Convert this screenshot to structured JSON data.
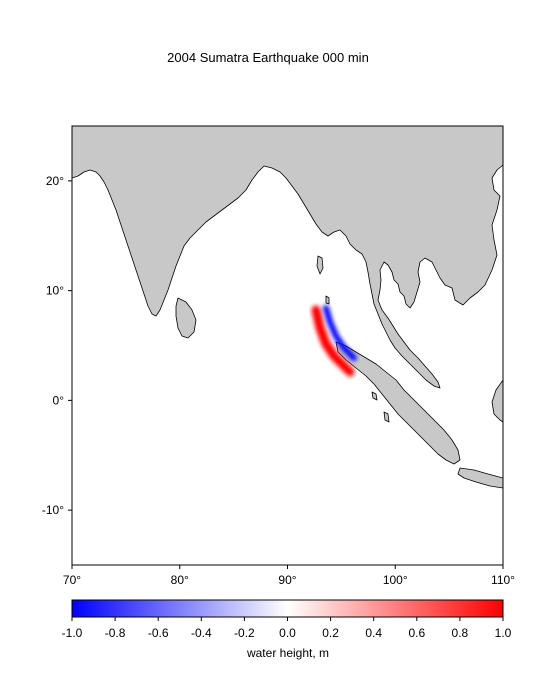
{
  "title": "2004 Sumatra Earthquake  000 min",
  "map": {
    "lon_range": [
      70,
      110
    ],
    "lat_range": [
      -15,
      25
    ],
    "x_ticks": [
      {
        "value": 70,
        "label": "70°"
      },
      {
        "value": 80,
        "label": "80°"
      },
      {
        "value": 90,
        "label": "90°"
      },
      {
        "value": 100,
        "label": "100°"
      },
      {
        "value": 110,
        "label": "110°"
      }
    ],
    "y_ticks": [
      {
        "value": 20,
        "label": "20°"
      },
      {
        "value": 10,
        "label": "10°"
      },
      {
        "value": 0,
        "label": "0°"
      },
      {
        "value": -10,
        "label": "-10°"
      }
    ],
    "land_color": "#c8c8c8",
    "ocean_color": "#ffffff"
  },
  "colorbar": {
    "label": "water height, m",
    "range": [
      -1.0,
      1.0
    ],
    "ticks": [
      "-1.0",
      "-0.8",
      "-0.6",
      "-0.4",
      "-0.2",
      "0.0",
      "0.2",
      "0.4",
      "0.6",
      "0.8",
      "1.0"
    ],
    "low_color": "#0000ff",
    "mid_color": "#ffffff",
    "high_color": "#ff0000"
  }
}
